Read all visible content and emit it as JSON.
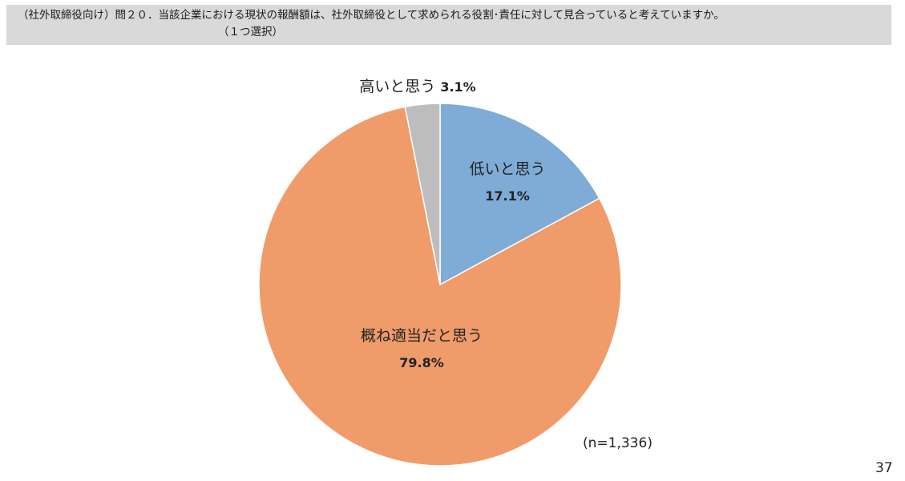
{
  "question": {
    "line1": "（社外取締役向け）問２０．当該企業における現状の報酬額は、社外取締役として求められる役割･責任に対して見合っていると考えていますか。",
    "line2": "（１つ選択）"
  },
  "chart_data": {
    "type": "pie",
    "categories": [
      "低いと思う",
      "概ね適当だと思う",
      "高いと思う"
    ],
    "values": [
      17.1,
      79.8,
      3.1
    ],
    "value_labels": [
      "17.1%",
      "79.8%",
      "3.1%"
    ],
    "colors": [
      "#7facd6",
      "#ef9b6a",
      "#bdbdbd"
    ],
    "start": "12 o'clock",
    "direction": "clockwise",
    "title": "",
    "legend": "none"
  },
  "sample_size": "(n=1,336)",
  "page_number": "37"
}
